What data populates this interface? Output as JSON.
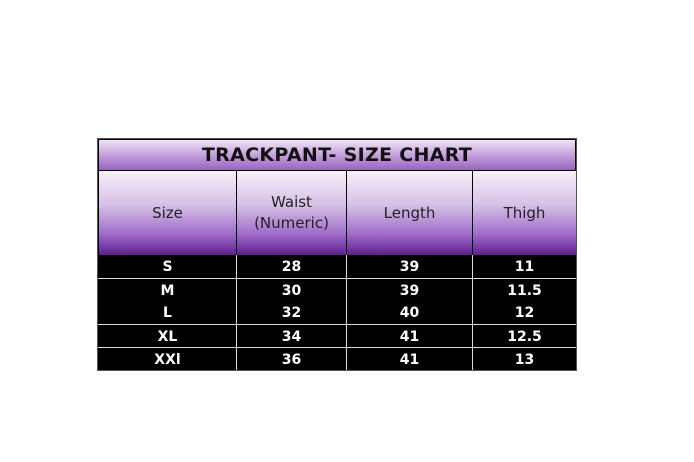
{
  "title": "TRACKPANT- SIZE CHART",
  "headers": [
    "Size",
    "Waist\n(Numeric)",
    "Length",
    "Thigh"
  ],
  "header_waist_line1": "Waist",
  "header_waist_line2": "(Numeric)",
  "rows": [
    [
      "S",
      "28",
      "39",
      "11"
    ],
    [
      "M",
      "30",
      "39",
      "11.5"
    ],
    [
      "L",
      "32",
      "40",
      "12"
    ],
    [
      "XL",
      "34",
      "41",
      "12.5"
    ],
    [
      "XXl",
      "36",
      "41",
      "13"
    ]
  ],
  "colors": {
    "header_purple": "#5e1f92",
    "title_light": "#efe4f5",
    "body_bg": "#000000",
    "text": "#ffffff"
  }
}
